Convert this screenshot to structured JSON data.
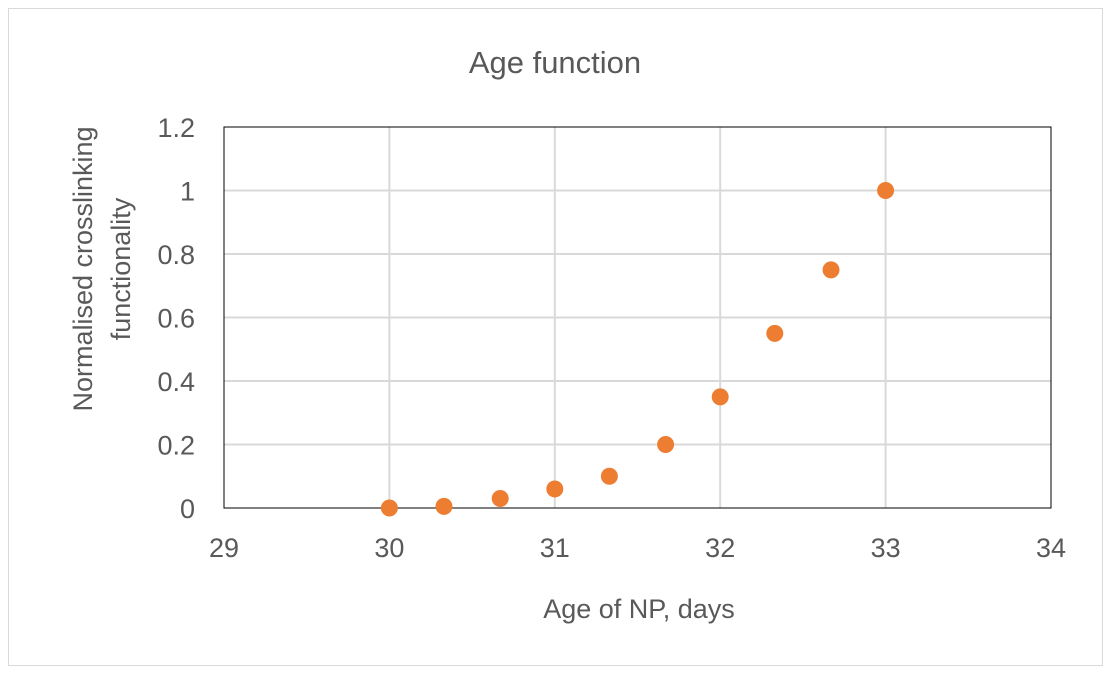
{
  "chart_data": {
    "type": "scatter",
    "title": "Age function",
    "xlabel": "Age of NP, days",
    "ylabel": "Normalised crosslinking functionality",
    "xlim": [
      29,
      34
    ],
    "ylim": [
      0,
      1.2
    ],
    "x_ticks": [
      29,
      30,
      31,
      32,
      33,
      34
    ],
    "y_ticks": [
      0,
      0.2,
      0.4,
      0.6,
      0.8,
      1,
      1.2
    ],
    "x_tick_labels": [
      "29",
      "30",
      "31",
      "32",
      "33",
      "34"
    ],
    "y_tick_labels": [
      "0",
      "0.2",
      "0.4",
      "0.6",
      "0.8",
      "1",
      "1.2"
    ],
    "grid": true,
    "legend": false,
    "marker_color": "#ED7D31",
    "grid_color": "#d9d9d9",
    "series": [
      {
        "x": [
          30,
          30.33,
          30.67,
          31,
          31.33,
          31.67,
          32,
          32.33,
          32.67,
          33
        ],
        "y": [
          0,
          0.005,
          0.03,
          0.06,
          0.1,
          0.2,
          0.35,
          0.55,
          0.75,
          1.0
        ]
      }
    ]
  }
}
